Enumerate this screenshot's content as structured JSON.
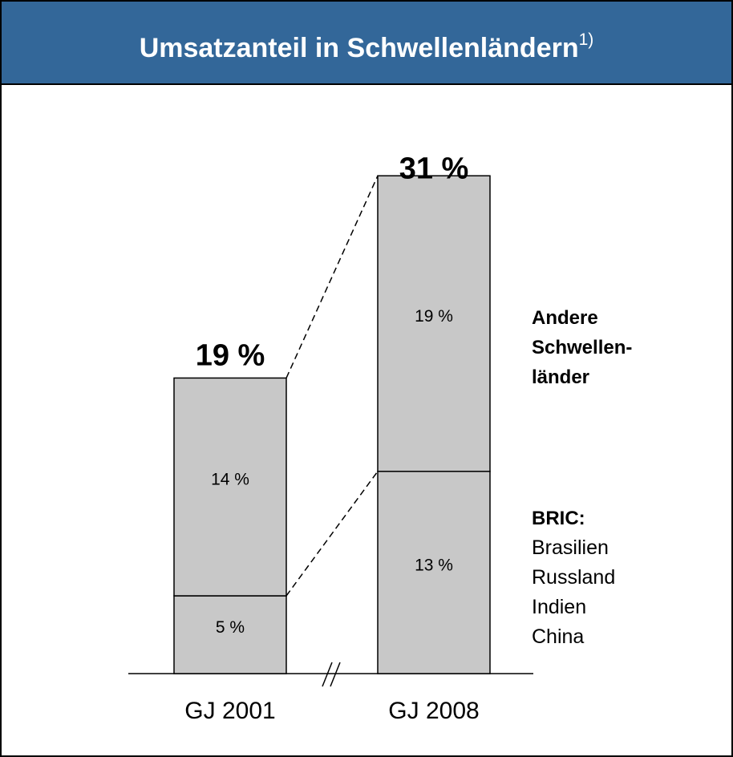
{
  "chart_data": {
    "type": "stacked-bar",
    "title": "Umsatzanteil in Schwellenländern",
    "title_note": "1)",
    "categories": [
      "GJ 2001",
      "GJ 2008"
    ],
    "series": [
      {
        "name": "BRIC:",
        "members": [
          "Brasilien",
          "Russland",
          "Indien",
          "China"
        ],
        "color": "#c8c8c8",
        "values": [
          5,
          13
        ],
        "value_labels": [
          "5 %",
          "13 %"
        ]
      },
      {
        "name": "Andere Schwellen- länder",
        "color": "#c8c8c8",
        "values": [
          14,
          19
        ],
        "value_labels": [
          "14 %",
          "19 %"
        ]
      }
    ],
    "totals": [
      19,
      31
    ],
    "total_labels": [
      "19 %",
      "31 %"
    ]
  }
}
